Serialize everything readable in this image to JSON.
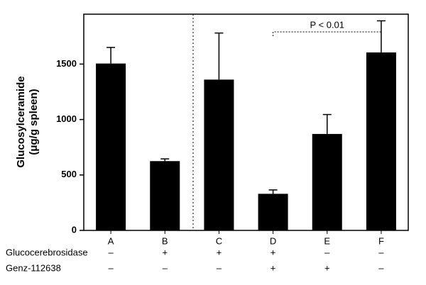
{
  "chart_data": {
    "type": "bar",
    "y_label_lines": [
      "Glucosylceramide",
      "(μg/g spleen)"
    ],
    "categories": [
      "A",
      "B",
      "C",
      "D",
      "E",
      "F"
    ],
    "values": [
      1505,
      625,
      1360,
      330,
      870,
      1605
    ],
    "errors": [
      145,
      20,
      420,
      35,
      175,
      285
    ],
    "color": "#000000",
    "ylim": [
      0,
      1950
    ],
    "yticks": [
      0,
      500,
      1000,
      1500
    ],
    "annotation": "P < 0.01",
    "rows": [
      {
        "label": "Glucocerebrosidase",
        "signs": [
          "–",
          "+",
          "+",
          "+",
          "–",
          "–"
        ]
      },
      {
        "label": "Genz-112638",
        "signs": [
          "–",
          "–",
          "–",
          "+",
          "+",
          "–"
        ]
      }
    ]
  }
}
